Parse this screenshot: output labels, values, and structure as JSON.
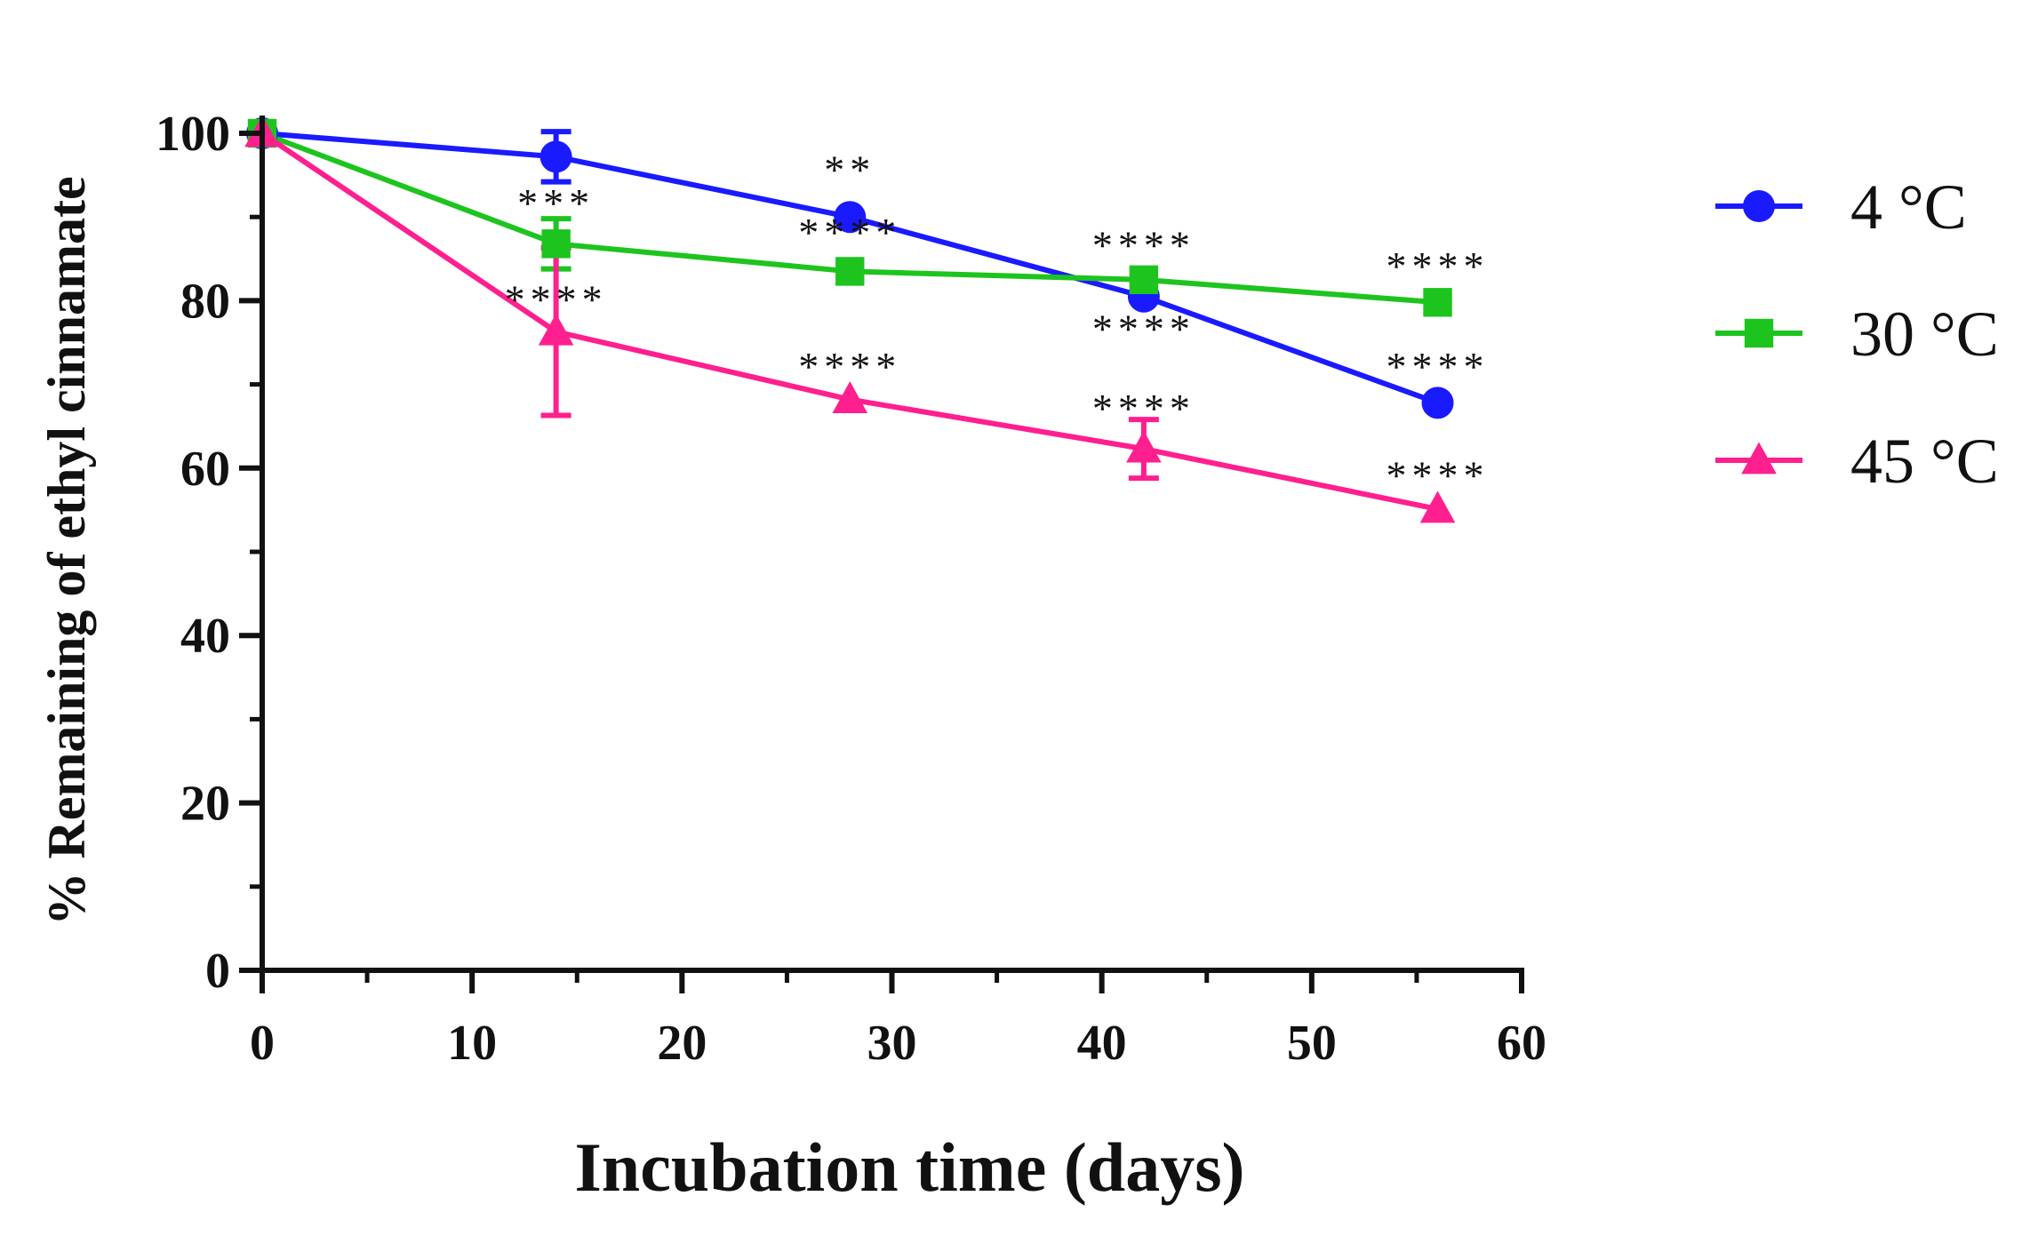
{
  "chart_data": {
    "type": "line",
    "title": "",
    "xlabel": "Incubation time (days)",
    "ylabel": "% Remaining of ethyl cinnamate",
    "xlim": [
      0,
      60
    ],
    "ylim": [
      0,
      100
    ],
    "xticks": [
      0,
      10,
      20,
      30,
      40,
      50,
      60
    ],
    "yticks": [
      0,
      20,
      40,
      60,
      80,
      100
    ],
    "grid": false,
    "legend_position": "right",
    "x": [
      0,
      14,
      28,
      42,
      56
    ],
    "series": [
      {
        "name": "4 °C",
        "color": "#1a1aff",
        "marker": "circle",
        "values": [
          100,
          97.2,
          90,
          80.5,
          67.8
        ],
        "errors": [
          0,
          3,
          0,
          0,
          0
        ]
      },
      {
        "name": "30 °C",
        "color": "#1ec41e",
        "marker": "square",
        "values": [
          100,
          86.8,
          83.5,
          82.5,
          79.8
        ],
        "errors": [
          0,
          3,
          0,
          0,
          0
        ]
      },
      {
        "name": "45 °C",
        "color": "#ff1f8f",
        "marker": "triangle",
        "values": [
          100,
          76.3,
          68.2,
          62.3,
          55.1
        ],
        "errors": [
          0,
          10,
          0,
          3.5,
          0
        ]
      }
    ],
    "annotations": [
      {
        "x": 14,
        "y": 90,
        "text": "***"
      },
      {
        "x": 14,
        "y": 78.5,
        "text": "****"
      },
      {
        "x": 28,
        "y": 94,
        "text": "**"
      },
      {
        "x": 28,
        "y": 86.5,
        "text": "****"
      },
      {
        "x": 28,
        "y": 70.5,
        "text": "****"
      },
      {
        "x": 42,
        "y": 85,
        "text": "****"
      },
      {
        "x": 42,
        "y": 75,
        "text": "****"
      },
      {
        "x": 42,
        "y": 65.5,
        "text": "****"
      },
      {
        "x": 56,
        "y": 82.5,
        "text": "****"
      },
      {
        "x": 56,
        "y": 70.5,
        "text": "****"
      },
      {
        "x": 56,
        "y": 57.5,
        "text": "****"
      }
    ]
  }
}
